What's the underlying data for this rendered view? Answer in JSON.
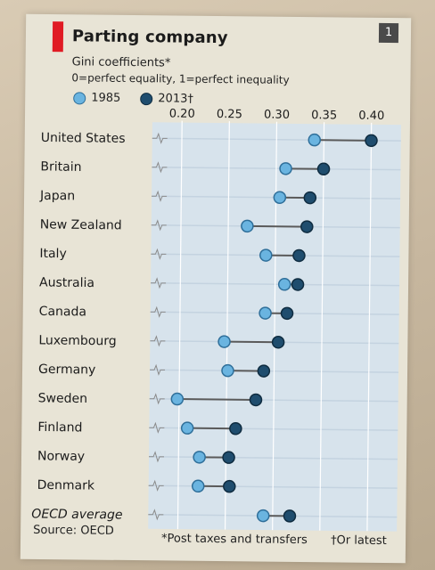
{
  "header": {
    "title": "Parting company",
    "chart_number": "1",
    "subtitle": "Gini coefficients*",
    "subtitle_note": "0=perfect equality, 1=perfect inequality"
  },
  "legend": {
    "series_1985": "1985",
    "series_2013": "2013†"
  },
  "footer": {
    "source": "Source: OECD",
    "note_1": "*Post taxes and transfers",
    "note_2": "†Or latest"
  },
  "colors": {
    "dot_1985": "#6ab4e0",
    "dot_2013": "#1f4d6e",
    "connector": "#5a5a5a",
    "gridline": "#ffffff",
    "row_line": "#c4d3e0"
  },
  "chart_data": {
    "type": "dot-plot",
    "title": "Parting company",
    "subtitle": "Gini coefficients*",
    "xlim": [
      0.18,
      0.42
    ],
    "ticks": [
      "0.20",
      "0.25",
      "0.30",
      "0.35",
      "0.40"
    ],
    "tick_values": [
      0.2,
      0.25,
      0.3,
      0.35,
      0.4
    ],
    "categories": [
      "United States",
      "Britain",
      "Japan",
      "New Zealand",
      "Italy",
      "Australia",
      "Canada",
      "Luxembourg",
      "Germany",
      "Sweden",
      "Finland",
      "Norway",
      "Denmark",
      "OECD average"
    ],
    "series": [
      {
        "name": "1985",
        "values": [
          0.34,
          0.31,
          0.304,
          0.27,
          0.29,
          0.31,
          0.29,
          0.247,
          0.251,
          0.198,
          0.209,
          0.222,
          0.221,
          0.29
        ]
      },
      {
        "name": "2013†",
        "values": [
          0.4,
          0.35,
          0.336,
          0.333,
          0.325,
          0.324,
          0.313,
          0.304,
          0.289,
          0.281,
          0.26,
          0.253,
          0.254,
          0.318
        ]
      }
    ],
    "grid": true
  }
}
